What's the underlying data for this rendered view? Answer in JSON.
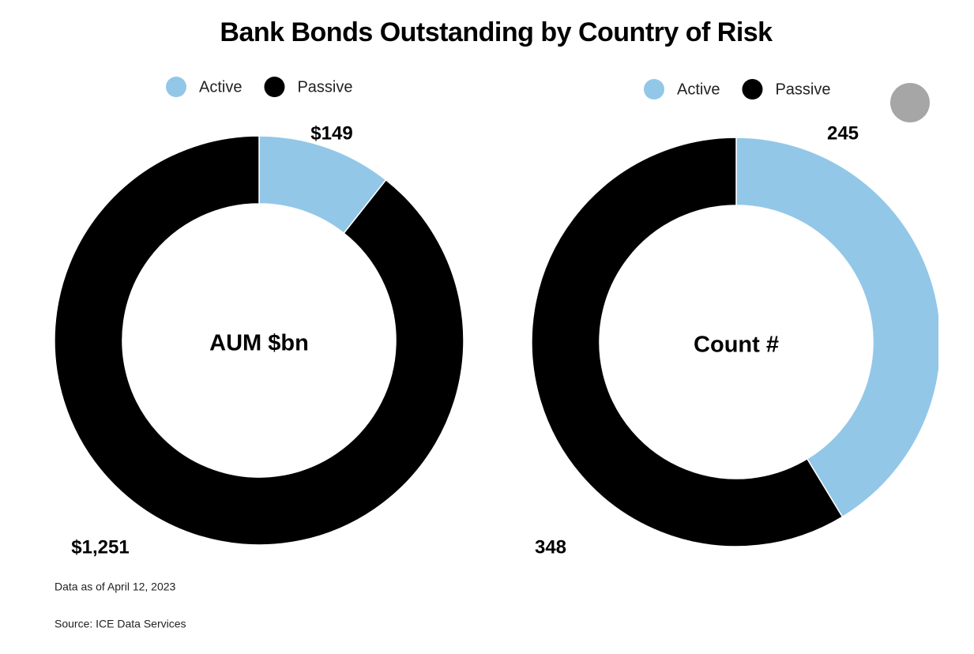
{
  "title": "Bank Bonds Outstanding by Country of Risk",
  "footnotes": [
    "Data as of April 12, 2023",
    "Source: ICE Data Services"
  ],
  "chart_data": [
    {
      "type": "donut",
      "center_label": "AUM $bn",
      "categories": [
        "Active",
        "Passive"
      ],
      "values": [
        149,
        1251
      ],
      "value_labels": [
        "$149",
        "$1,251"
      ],
      "colors": [
        "#92c7e8",
        "#000000"
      ],
      "legend": "top"
    },
    {
      "type": "donut",
      "center_label": "Count #",
      "categories": [
        "Active",
        "Passive"
      ],
      "values": [
        245,
        348
      ],
      "colors": [
        "#92c7e8",
        "#000000"
      ],
      "legend": "top"
    }
  ]
}
